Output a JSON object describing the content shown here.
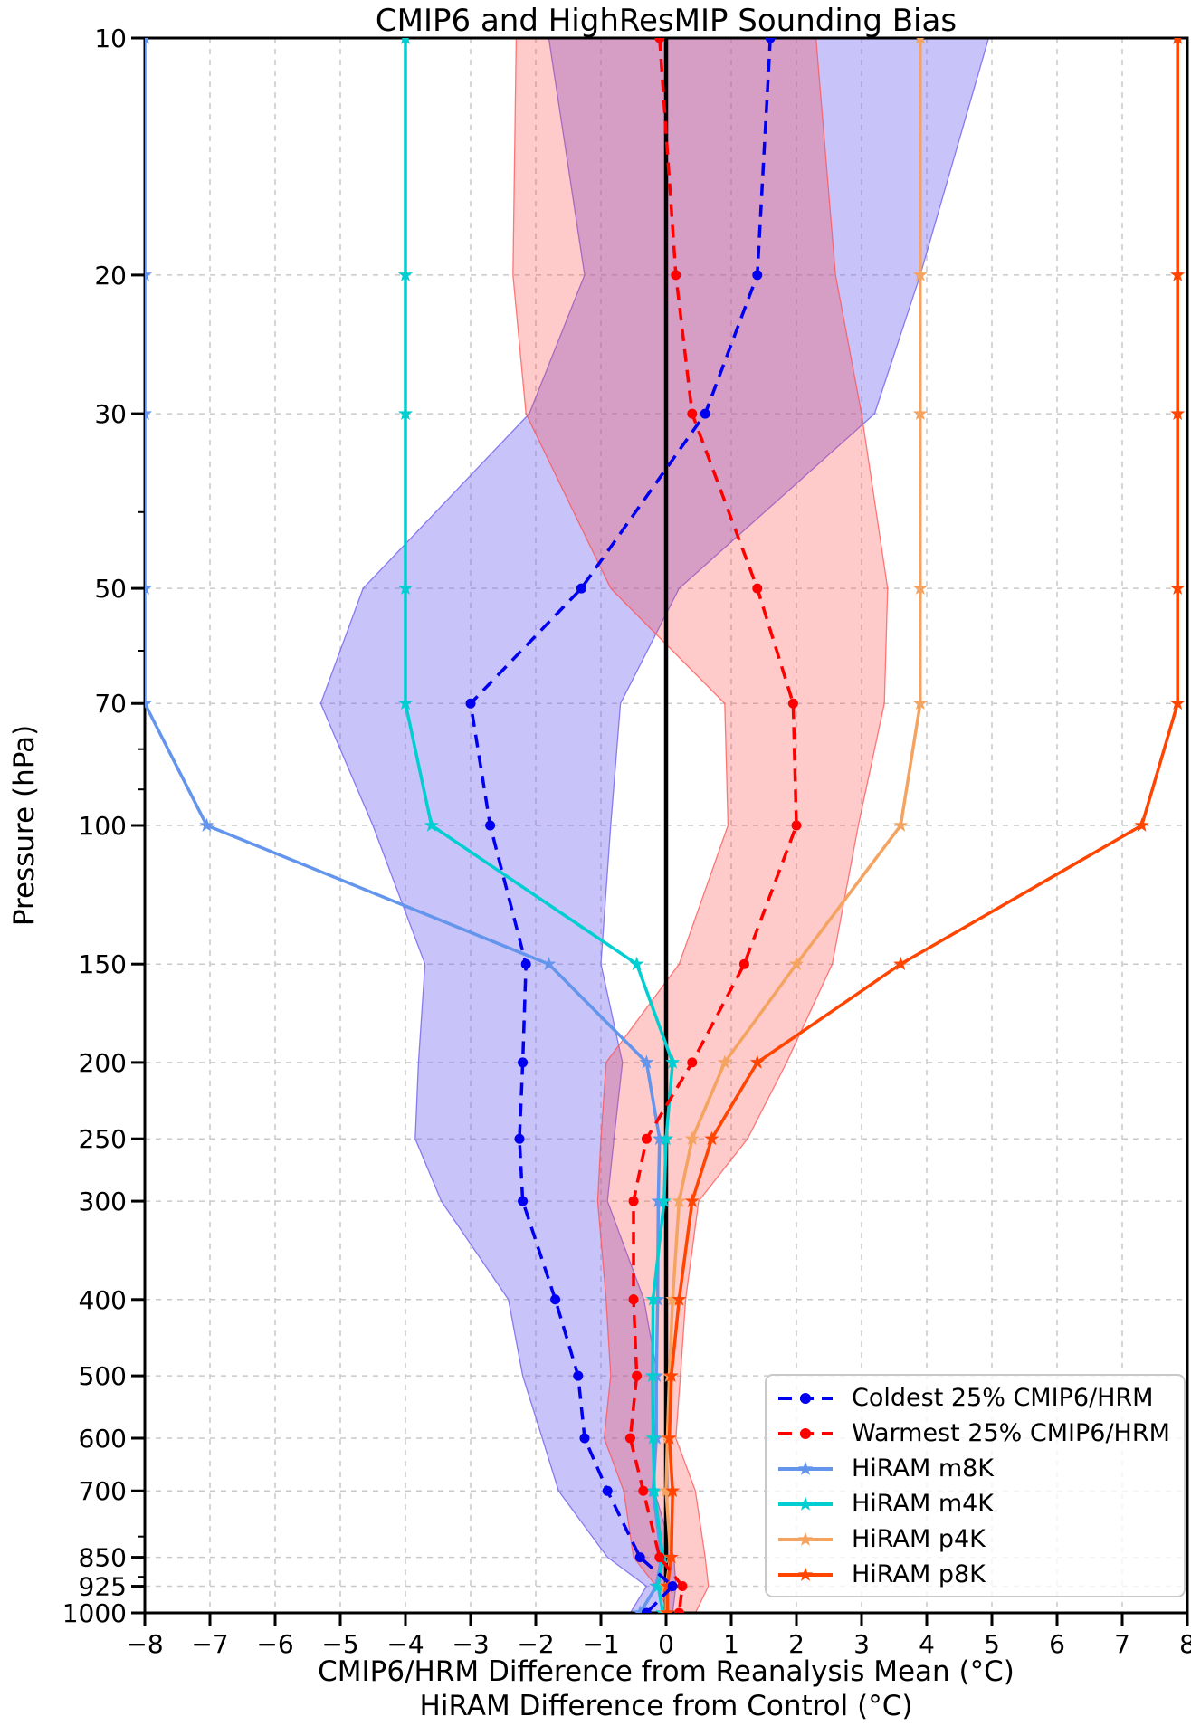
{
  "chart_data": {
    "type": "line",
    "title": "CMIP6 and HighResMIP Sounding Bias",
    "x_axis": {
      "label_line1": "CMIP6/HRM Difference from Reanalysis Mean (°C)",
      "label_line2": "HiRAM Difference from Control (°C)",
      "range": [
        -8,
        8
      ],
      "ticks": [
        -8,
        -7,
        -6,
        -5,
        -4,
        -3,
        -2,
        -1,
        0,
        1,
        2,
        3,
        4,
        5,
        6,
        7,
        8
      ]
    },
    "y_axis": {
      "label": "Pressure (hPa)",
      "scale": "log",
      "inverted": true,
      "range": [
        10,
        1000
      ],
      "ticks": [
        10,
        20,
        30,
        50,
        70,
        100,
        150,
        200,
        250,
        300,
        400,
        500,
        600,
        700,
        850,
        925,
        1000
      ],
      "minor_ticks": [
        40,
        60,
        80,
        90,
        800,
        900
      ]
    },
    "grid": true,
    "zero_line": {
      "x": 0,
      "color": "#000000"
    },
    "legend_position": "lower right",
    "pressure_levels": [
      10,
      20,
      30,
      50,
      70,
      100,
      150,
      200,
      250,
      300,
      400,
      500,
      600,
      700,
      850,
      925,
      1000
    ],
    "series": [
      {
        "name": "HiRAM m8K",
        "color": "#6495ED",
        "style": "solid",
        "marker": "star",
        "values": [
          -8,
          -8,
          -8,
          -8,
          -8,
          -7.05,
          -1.8,
          -0.3,
          -0.1,
          -0.12,
          -0.13,
          -0.15,
          -0.15,
          -0.2,
          -0.07,
          -0.15,
          -0.4
        ]
      },
      {
        "name": "HiRAM m4K",
        "color": "#00CED1",
        "style": "solid",
        "marker": "star",
        "values": [
          -4,
          -4,
          -4,
          -4,
          -4,
          -3.6,
          -0.45,
          0.1,
          0.0,
          -0.03,
          -0.2,
          -0.21,
          -0.2,
          -0.18,
          -0.05,
          -0.12,
          -0.05
        ]
      },
      {
        "name": "HiRAM p4K",
        "color": "#F4A460",
        "style": "solid",
        "marker": "star",
        "values": [
          3.9,
          3.9,
          3.9,
          3.9,
          3.9,
          3.6,
          2.0,
          0.9,
          0.4,
          0.2,
          0.1,
          0.05,
          0.02,
          0.0,
          0.07,
          0.0,
          0.0
        ]
      },
      {
        "name": "HiRAM p8K",
        "color": "#FF4500",
        "style": "solid",
        "marker": "star",
        "values": [
          7.85,
          7.85,
          7.85,
          7.85,
          7.85,
          7.3,
          3.6,
          1.4,
          0.7,
          0.4,
          0.2,
          0.08,
          0.05,
          0.1,
          0.08,
          0.02,
          0.02
        ]
      },
      {
        "name": "Coldest 25% CMIP6/HRM",
        "color": "#0000EE",
        "style": "dashed",
        "marker": "circle",
        "values": [
          1.6,
          1.4,
          0.6,
          -1.3,
          -3.0,
          -2.7,
          -2.15,
          -2.2,
          -2.25,
          -2.2,
          -1.7,
          -1.35,
          -1.25,
          -0.9,
          -0.4,
          0.1,
          -0.3
        ]
      },
      {
        "name": "Warmest 25% CMIP6/HRM",
        "color": "#FF0000",
        "style": "dashed",
        "marker": "circle",
        "values": [
          -0.1,
          0.15,
          0.4,
          1.4,
          1.95,
          2.0,
          1.2,
          0.4,
          -0.3,
          -0.5,
          -0.5,
          -0.45,
          -0.55,
          -0.35,
          -0.1,
          0.25,
          0.2
        ]
      }
    ],
    "bands": [
      {
        "name": "coldest-quartile-spread",
        "fill": "rgba(118,104,238,0.40)",
        "edge": "rgba(118,104,238,0.85)",
        "low": [
          -1.8,
          -1.25,
          -2.1,
          -4.65,
          -5.3,
          -4.5,
          -3.7,
          -3.8,
          -3.85,
          -3.45,
          -2.42,
          -2.2,
          -1.9,
          -1.65,
          -0.9,
          -0.3,
          -0.55
        ],
        "high": [
          4.95,
          3.9,
          3.2,
          0.2,
          -0.7,
          -0.85,
          -1.0,
          -0.67,
          -0.8,
          -0.9,
          -0.34,
          -0.13,
          -0.18,
          -0.18,
          0.12,
          0.15,
          0.1
        ]
      },
      {
        "name": "warmest-quartile-spread",
        "fill": "rgba(255,65,65,0.28)",
        "edge": "rgba(255,80,80,0.75)",
        "low": [
          -2.3,
          -2.35,
          -2.15,
          -0.85,
          0.9,
          0.95,
          0.2,
          -0.92,
          -1.0,
          -1.05,
          -0.92,
          -0.85,
          -0.95,
          -0.65,
          -0.5,
          -0.15,
          0.05
        ],
        "high": [
          2.3,
          2.6,
          3.0,
          3.4,
          3.35,
          2.95,
          2.55,
          1.85,
          1.25,
          0.5,
          0.3,
          0.22,
          0.15,
          0.45,
          0.6,
          0.65,
          0.45
        ]
      }
    ],
    "legend_order": [
      4,
      5,
      0,
      1,
      2,
      3
    ]
  },
  "style": {
    "grid_color": "#c9c9c9",
    "axis_color": "#000000",
    "background": "#ffffff"
  }
}
